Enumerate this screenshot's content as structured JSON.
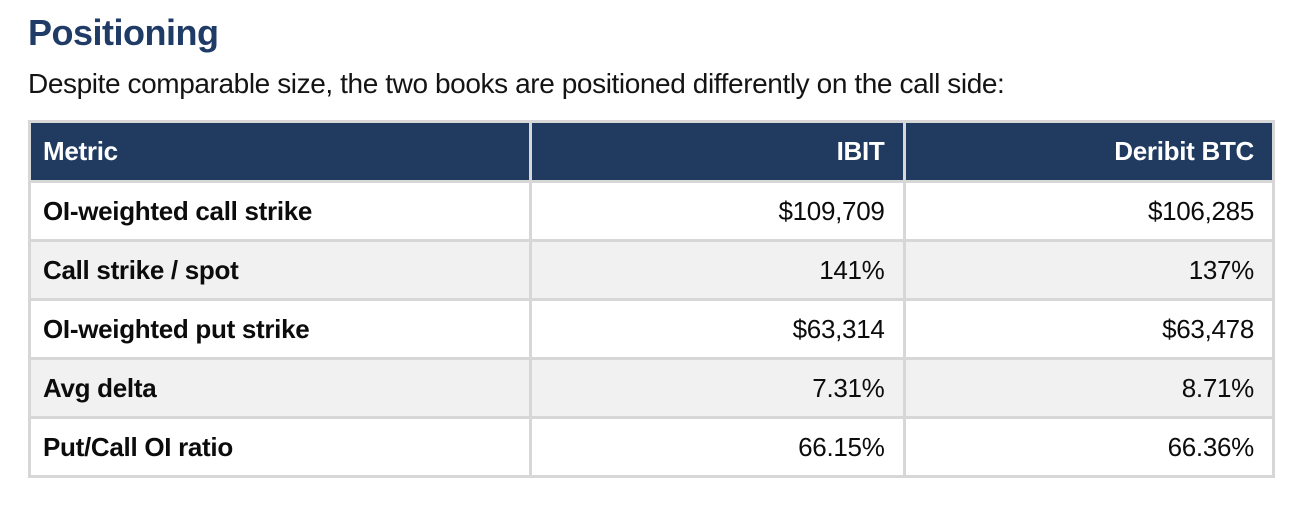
{
  "page": {
    "title": "Positioning",
    "intro": "Despite comparable size, the two books are positioned differently on the call side:"
  },
  "colors": {
    "heading_text": "#1f3b66",
    "table_header_bg": "#203a60",
    "table_header_text": "#ffffff",
    "row_alt_bg": "#f1f1f1",
    "table_border": "#d7d7d7",
    "body_text": "#111111"
  },
  "table": {
    "columns": [
      "Metric",
      "IBIT",
      "Deribit BTC"
    ],
    "rows": [
      {
        "metric": "OI-weighted call strike",
        "ibit": "$109,709",
        "deribit": "$106,285"
      },
      {
        "metric": "Call strike / spot",
        "ibit": "141%",
        "deribit": "137%"
      },
      {
        "metric": "OI-weighted put strike",
        "ibit": "$63,314",
        "deribit": "$63,478"
      },
      {
        "metric": "Avg delta",
        "ibit": "7.31%",
        "deribit": "8.71%"
      },
      {
        "metric": "Put/Call OI ratio",
        "ibit": "66.15%",
        "deribit": "66.36%"
      }
    ]
  }
}
